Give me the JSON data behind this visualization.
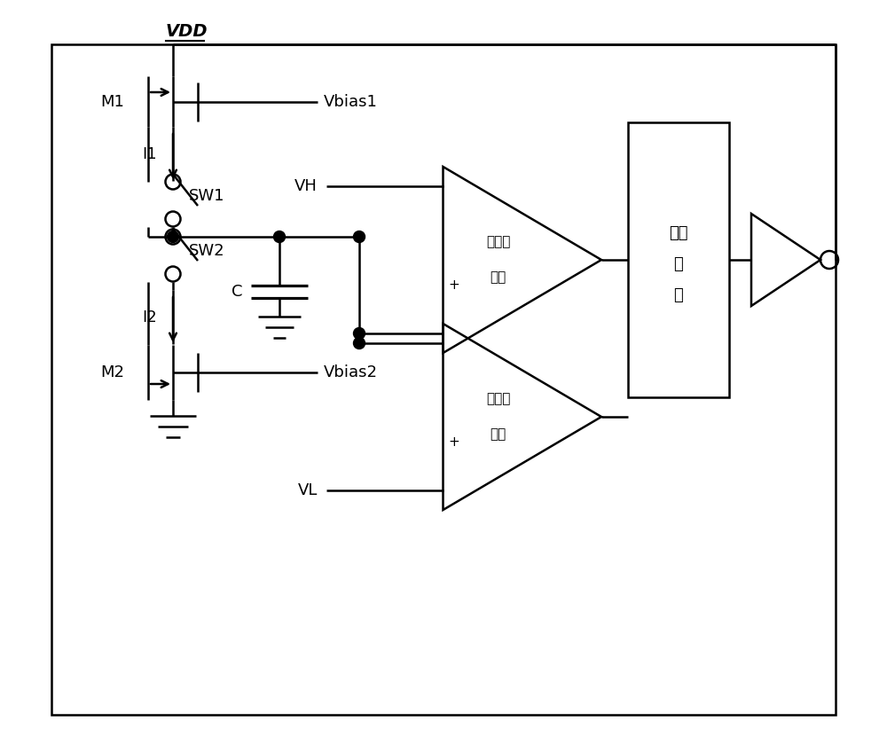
{
  "fig_width": 10.0,
  "fig_height": 8.48,
  "bg_color": "#ffffff",
  "line_color": "#000000",
  "lw": 1.8,
  "vdd_label": "VDD",
  "m1_label": "M1",
  "m2_label": "M2",
  "i1_label": "I1",
  "i2_label": "I2",
  "sw1_label": "SW1",
  "sw2_label": "SW2",
  "c_label": "C",
  "vbias1_label": "Vbias1",
  "vbias2_label": "Vbias2",
  "vh_label": "VH",
  "vl_label": "VL",
  "high_comp_line1": "高位比",
  "high_comp_line2": "较器",
  "low_comp_line1": "低位比",
  "low_comp_line2": "较器",
  "ctrl_line1": "控制",
  "ctrl_line2": "部",
  "ctrl_line3": "分",
  "font_size_vdd": 14,
  "font_size_label": 13,
  "font_size_comp": 11,
  "font_size_ctrl": 13
}
